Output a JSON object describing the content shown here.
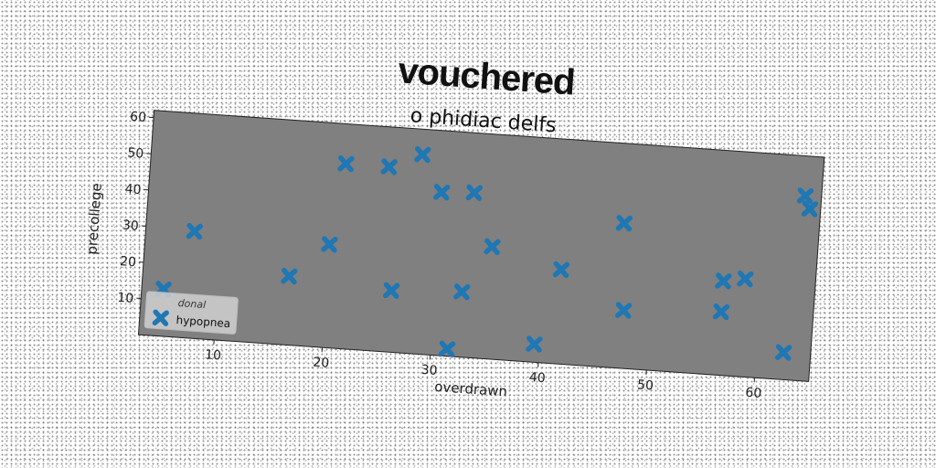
{
  "chart_data": {
    "type": "scatter",
    "title": "vouchered",
    "subtitle": "o phidiac delfs",
    "xlabel": "overdrawn",
    "ylabel": "precollege",
    "xlim": [
      3,
      65
    ],
    "ylim": [
      0,
      62
    ],
    "xticks": [
      10,
      20,
      30,
      40,
      50,
      60
    ],
    "yticks": [
      10,
      20,
      30,
      40,
      50,
      60
    ],
    "grid": false,
    "background_color": "#808080",
    "marker": "X",
    "legend": {
      "title": "donal",
      "location": "lower-left"
    },
    "series": [
      {
        "name": "hypopnea",
        "color": "#1f77b4",
        "points": [
          [
            5,
            13
          ],
          [
            7.5,
            29.5
          ],
          [
            16.5,
            19
          ],
          [
            20,
            28.5
          ],
          [
            21,
            51
          ],
          [
            25,
            51
          ],
          [
            26,
            17
          ],
          [
            28,
            55
          ],
          [
            30,
            45
          ],
          [
            32.5,
            18
          ],
          [
            31.5,
            2
          ],
          [
            33,
            45.5
          ],
          [
            35,
            31
          ],
          [
            39.5,
            5
          ],
          [
            41.5,
            26
          ],
          [
            47,
            40
          ],
          [
            47.5,
            16
          ],
          [
            56.5,
            17.5
          ],
          [
            56.5,
            26
          ],
          [
            58.5,
            27
          ],
          [
            62.5,
            7.5
          ],
          [
            63.5,
            51
          ],
          [
            64,
            47.5
          ]
        ]
      }
    ]
  }
}
